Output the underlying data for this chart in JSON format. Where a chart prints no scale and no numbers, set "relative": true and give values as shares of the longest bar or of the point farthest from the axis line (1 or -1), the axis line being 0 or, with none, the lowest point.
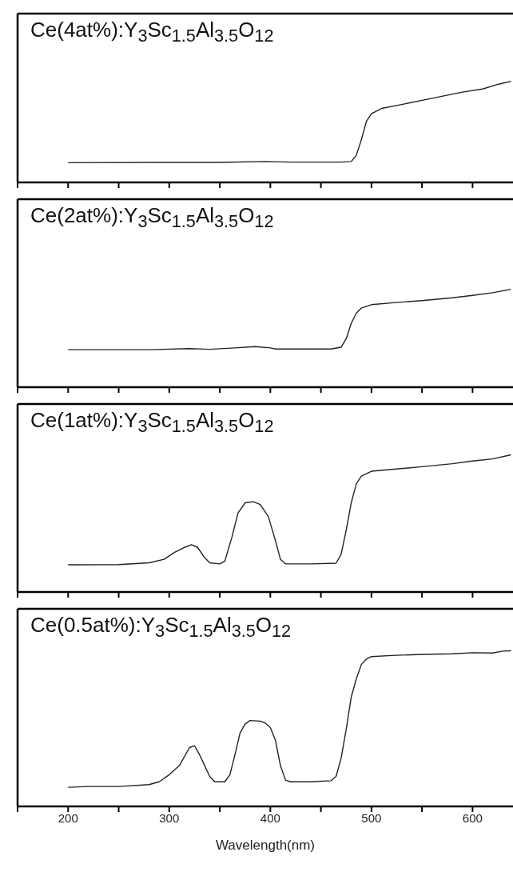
{
  "chart_data": [
    {
      "type": "line",
      "title": "Ce(4at%):Y$_{3}$Sc$_{1.5}$Al$_{3.5}$O$_{12}$",
      "relative": true,
      "tick_labels": false,
      "xlim": [
        150,
        640
      ],
      "xticks": [
        {
          "value": 150,
          "label": null
        },
        200,
        {
          "value": 250,
          "label": null
        },
        300,
        {
          "value": 350,
          "label": null
        },
        400,
        {
          "value": 450,
          "label": null
        },
        500,
        {
          "value": 550,
          "label": null
        },
        600
      ],
      "x": [
        200,
        300,
        350,
        395,
        420,
        470,
        480,
        485,
        490,
        495,
        500,
        510,
        530,
        560,
        590,
        610,
        625,
        638
      ],
      "series": [
        {
          "color": "#222222",
          "values": [
            0.195,
            0.198,
            0.198,
            0.207,
            0.201,
            0.201,
            0.207,
            0.268,
            0.421,
            0.604,
            0.68,
            0.732,
            0.771,
            0.832,
            0.893,
            0.924,
            0.97,
            1
          ]
        }
      ]
    },
    {
      "type": "line",
      "title": "Ce(2at%):Y$_{3}$Sc$_{1.5}$Al$_{3.5}$O$_{12}$",
      "relative": true,
      "tick_labels": false,
      "xlim": [
        150,
        640
      ],
      "xticks": [
        {
          "value": 150,
          "label": null
        },
        200,
        {
          "value": 250,
          "label": null
        },
        300,
        {
          "value": 350,
          "label": null
        },
        400,
        {
          "value": 450,
          "label": null
        },
        500,
        {
          "value": 550,
          "label": null
        },
        600
      ],
      "x": [
        200,
        280,
        320,
        340,
        365,
        385,
        400,
        405,
        460,
        470,
        475,
        480,
        485,
        490,
        500,
        520,
        550,
        580,
        600,
        620,
        638
      ],
      "series": [
        {
          "color": "#222222",
          "values": [
            0.383,
            0.383,
            0.394,
            0.387,
            0.401,
            0.415,
            0.401,
            0.39,
            0.39,
            0.408,
            0.495,
            0.652,
            0.756,
            0.808,
            0.843,
            0.861,
            0.885,
            0.913,
            0.937,
            0.965,
            1
          ]
        }
      ]
    },
    {
      "type": "line",
      "title": "Ce(1at%):Y$_{3}$Sc$_{1.5}$Al$_{3.5}$O$_{12}$",
      "relative": true,
      "tick_labels": false,
      "xlim": [
        150,
        640
      ],
      "xticks": [
        {
          "value": 150,
          "label": null
        },
        200,
        {
          "value": 250,
          "label": null
        },
        300,
        {
          "value": 350,
          "label": null
        },
        400,
        {
          "value": 450,
          "label": null
        },
        500,
        {
          "value": 550,
          "label": null
        },
        600
      ],
      "x": [
        200,
        250,
        280,
        295,
        305,
        315,
        322,
        328,
        335,
        340,
        350,
        355,
        362,
        368,
        375,
        383,
        390,
        398,
        405,
        410,
        415,
        440,
        465,
        470,
        475,
        480,
        485,
        490,
        500,
        520,
        550,
        580,
        600,
        620,
        638
      ],
      "series": [
        {
          "color": "#222222",
          "values": [
            0.198,
            0.2,
            0.213,
            0.238,
            0.288,
            0.325,
            0.345,
            0.325,
            0.25,
            0.213,
            0.205,
            0.225,
            0.4,
            0.575,
            0.65,
            0.658,
            0.638,
            0.55,
            0.375,
            0.238,
            0.205,
            0.205,
            0.21,
            0.275,
            0.45,
            0.65,
            0.788,
            0.845,
            0.88,
            0.893,
            0.913,
            0.935,
            0.955,
            0.97,
            1
          ]
        }
      ]
    },
    {
      "type": "line",
      "title": "Ce(0.5at%):Y$_{3}$Sc$_{1.5}$Al$_{3.5}$O$_{12}$",
      "xlabel": "Wavelength(nm)",
      "relative": true,
      "tick_labels": "x",
      "xlim": [
        150,
        640
      ],
      "xticks": [
        {
          "value": 150,
          "label": null
        },
        200,
        {
          "value": 250,
          "label": null
        },
        300,
        {
          "value": 350,
          "label": null
        },
        400,
        {
          "value": 450,
          "label": null
        },
        500,
        {
          "value": 550,
          "label": null
        },
        600
      ],
      "x": [
        200,
        220,
        250,
        280,
        290,
        300,
        310,
        320,
        325,
        330,
        340,
        345,
        355,
        360,
        365,
        370,
        375,
        380,
        390,
        395,
        400,
        405,
        410,
        415,
        420,
        440,
        460,
        465,
        470,
        475,
        480,
        485,
        490,
        495,
        500,
        520,
        550,
        580,
        600,
        620,
        630,
        638
      ],
      "series": [
        {
          "color": "#222222",
          "values": [
            0.123,
            0.128,
            0.128,
            0.14,
            0.158,
            0.204,
            0.262,
            0.378,
            0.39,
            0.332,
            0.193,
            0.158,
            0.158,
            0.204,
            0.332,
            0.471,
            0.529,
            0.552,
            0.548,
            0.536,
            0.506,
            0.425,
            0.262,
            0.169,
            0.158,
            0.158,
            0.165,
            0.193,
            0.309,
            0.494,
            0.703,
            0.819,
            0.912,
            0.947,
            0.963,
            0.97,
            0.977,
            0.981,
            0.988,
            0.986,
            0.998,
            1
          ]
        }
      ]
    }
  ]
}
